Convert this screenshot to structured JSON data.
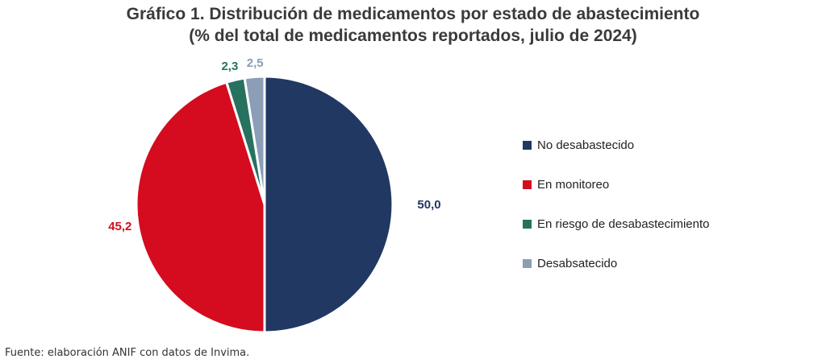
{
  "chart_data": {
    "type": "pie",
    "title": "Gráfico 1. Distribución de medicamentos por estado de abastecimiento",
    "subtitle": "(% del total de medicamentos reportados, julio de 2024)",
    "categories": [
      "No desabastecido",
      "En monitoreo",
      "En riesgo de desabastecimiento",
      "Desabsatecido"
    ],
    "values": [
      50.0,
      45.2,
      2.3,
      2.5
    ],
    "data_labels": [
      "50,0",
      "45,2",
      "2,3",
      "2,5"
    ],
    "colors": [
      "#213862",
      "#D50C1F",
      "#27715F",
      "#8B9DB7"
    ],
    "legend_position": "right"
  },
  "source": "Fuente: elaboración ANIF con datos de Invima."
}
